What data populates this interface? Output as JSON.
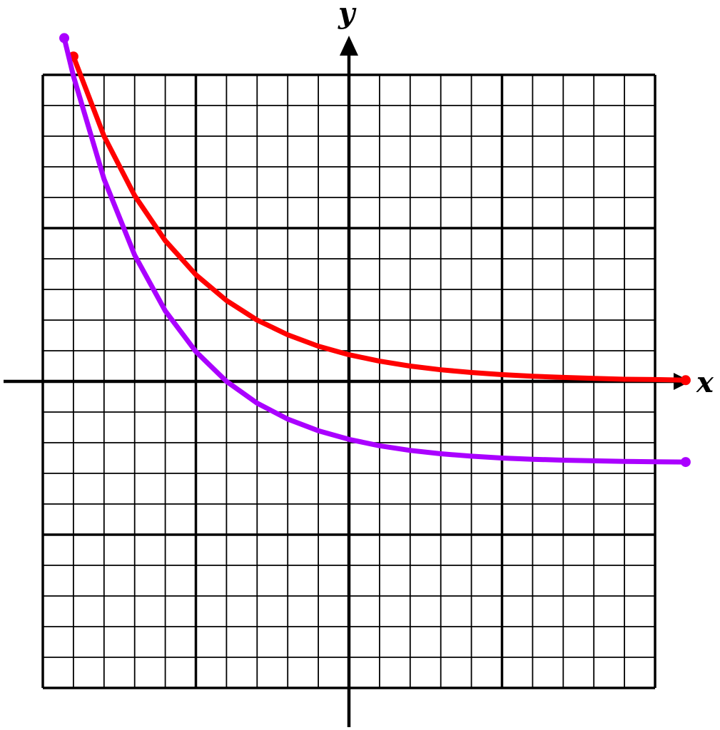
{
  "chart_data": {
    "type": "line",
    "xlabel": "x",
    "ylabel": "y",
    "xlim": [
      -10,
      10
    ],
    "ylim": [
      -10,
      10
    ],
    "grid": true,
    "series": [
      {
        "color": "#ff0000",
        "x": [
          -9.0,
          -8.0,
          -7.0,
          -6.0,
          -5.0,
          -4.0,
          -3.0,
          -2.0,
          -1.0,
          0.0,
          1.0,
          2.0,
          3.0,
          4.0,
          5.0,
          6.0,
          7.0,
          8.0,
          9.0,
          10.0,
          11.0
        ],
        "y": [
          10.6,
          8.0,
          6.06,
          4.59,
          3.48,
          2.64,
          2.0,
          1.52,
          1.15,
          0.87,
          0.66,
          0.5,
          0.38,
          0.29,
          0.22,
          0.17,
          0.13,
          0.1,
          0.07,
          0.06,
          0.04
        ]
      },
      {
        "color": "#aa00ff",
        "x": [
          -9.3,
          -9.0,
          -8.0,
          -7.0,
          -6.0,
          -5.0,
          -4.0,
          -3.0,
          -2.0,
          -1.0,
          0.0,
          1.0,
          2.0,
          3.0,
          4.0,
          5.0,
          6.0,
          7.0,
          8.0,
          9.0,
          10.0,
          11.0
        ],
        "y": [
          11.2,
          9.96,
          6.6,
          4.12,
          2.3,
          0.97,
          0.0,
          -0.71,
          -1.23,
          -1.61,
          -1.89,
          -2.1,
          -2.25,
          -2.36,
          -2.44,
          -2.5,
          -2.54,
          -2.57,
          -2.59,
          -2.61,
          -2.62,
          -2.63
        ]
      }
    ]
  }
}
